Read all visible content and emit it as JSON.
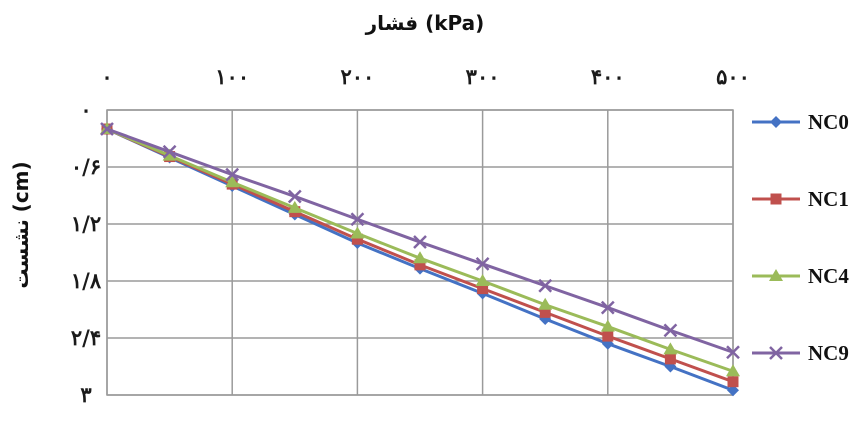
{
  "chart_data": {
    "type": "line",
    "title": "",
    "xlabel": "(kPa) فشار",
    "ylabel": "(cm) نشست",
    "xlim": [
      0,
      500
    ],
    "ylim": [
      0,
      3
    ],
    "y_inverted": true,
    "x_axis_position": "top",
    "grid": true,
    "legend_position": "right",
    "x_ticks": [
      0,
      100,
      200,
      300,
      400,
      500
    ],
    "x_tick_labels": [
      "۰",
      "۱۰۰",
      "۲۰۰",
      "۳۰۰",
      "۴۰۰",
      "۵۰۰"
    ],
    "y_ticks": [
      0,
      0.6,
      1.2,
      1.8,
      2.4,
      3
    ],
    "y_tick_labels": [
      "۰",
      "۰/۶",
      "۱/۲",
      "۱/۸",
      "۲/۴",
      "۳"
    ],
    "x": [
      0,
      50,
      100,
      150,
      200,
      250,
      300,
      350,
      400,
      450,
      500
    ],
    "series": [
      {
        "name": "NC0",
        "color": "#4472c4",
        "marker": "diamond",
        "values": [
          0.2,
          0.5,
          0.8,
          1.1,
          1.4,
          1.67,
          1.93,
          2.2,
          2.46,
          2.7,
          2.95
        ]
      },
      {
        "name": "NC1",
        "color": "#c0504d",
        "marker": "square",
        "values": [
          0.2,
          0.49,
          0.78,
          1.07,
          1.36,
          1.63,
          1.88,
          2.13,
          2.38,
          2.62,
          2.86
        ]
      },
      {
        "name": "NC4",
        "color": "#9bbb59",
        "marker": "triangle",
        "values": [
          0.2,
          0.48,
          0.76,
          1.03,
          1.3,
          1.56,
          1.8,
          2.05,
          2.28,
          2.52,
          2.75
        ]
      },
      {
        "name": "NC9",
        "color": "#8064a2",
        "marker": "x",
        "values": [
          0.2,
          0.44,
          0.68,
          0.91,
          1.15,
          1.39,
          1.62,
          1.85,
          2.08,
          2.32,
          2.55
        ]
      }
    ]
  }
}
